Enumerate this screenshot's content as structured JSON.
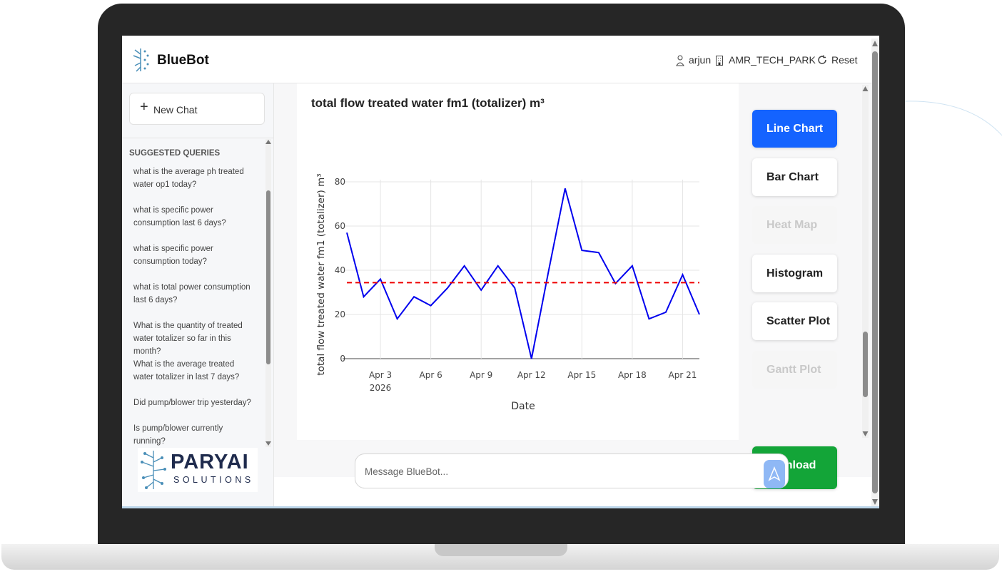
{
  "header": {
    "title": "BlueBot",
    "user": "arjun",
    "site": "AMR_TECH_PARK",
    "reset": "Reset"
  },
  "sidebar": {
    "new_chat": "New Chat",
    "section_title": "SUGGESTED QUERIES",
    "queries": [
      "what is the average ph treated water op1 today?",
      "what is specific power consumption last 6 days?",
      "what is specific power consumption today?",
      "what is total power consumption last 6 days?",
      "What is the quantity of treated water totalizer so far in this month?",
      "What is the average treated water totalizer in last 7 days?",
      "Did pump/blower trip yesterday?",
      "Is pump/blower currently running?"
    ],
    "brand": "PARYAI",
    "brand_sub": "SOLUTIONS"
  },
  "chart_data": {
    "type": "line",
    "title": "total flow treated water fm1 (totalizer) m³",
    "x_label": "Date",
    "y_label": "total flow treated water fm1 (totalizer) m³",
    "x": [
      "2026-04-01",
      "2026-04-02",
      "2026-04-03",
      "2026-04-04",
      "2026-04-05",
      "2026-04-06",
      "2026-04-07",
      "2026-04-08",
      "2026-04-09",
      "2026-04-10",
      "2026-04-11",
      "2026-04-12",
      "2026-04-13",
      "2026-04-14",
      "2026-04-15",
      "2026-04-16",
      "2026-04-17",
      "2026-04-18",
      "2026-04-19",
      "2026-04-20",
      "2026-04-21",
      "2026-04-22"
    ],
    "values": [
      57,
      28,
      36,
      18,
      28,
      24,
      32,
      42,
      31,
      42,
      32,
      0,
      39,
      77,
      49,
      48,
      34,
      42,
      18,
      21,
      38,
      20
    ],
    "color": "#0000ee",
    "reference_line": {
      "value": 34.4,
      "color": "#ee0000"
    },
    "xlim": [
      "2026-04-01",
      "2026-04-22"
    ],
    "xticks": [
      {
        "value": "2026-04-03",
        "label": "Apr 3"
      },
      {
        "value": "2026-04-06",
        "label": "Apr 6"
      },
      {
        "value": "2026-04-09",
        "label": "Apr 9"
      },
      {
        "value": "2026-04-12",
        "label": "Apr 12"
      },
      {
        "value": "2026-04-15",
        "label": "Apr 15"
      },
      {
        "value": "2026-04-18",
        "label": "Apr 18"
      },
      {
        "value": "2026-04-21",
        "label": "Apr 21"
      }
    ],
    "xtick_year": "2026",
    "ylim": [
      -2.5,
      81
    ],
    "yticks": [
      0,
      20,
      40,
      60,
      80
    ],
    "grid": true
  },
  "chart_buttons": [
    {
      "label": "Line Chart",
      "state": "active"
    },
    {
      "label": "Bar Chart",
      "state": "enabled"
    },
    {
      "label": "Heat Map",
      "state": "disabled"
    },
    {
      "label": "Histogram",
      "state": "enabled"
    },
    {
      "label": "Scatter Plot",
      "state": "enabled"
    },
    {
      "label": "Gantt Plot",
      "state": "disabled"
    }
  ],
  "download": "Download",
  "input": {
    "placeholder": "Message BlueBot..."
  }
}
